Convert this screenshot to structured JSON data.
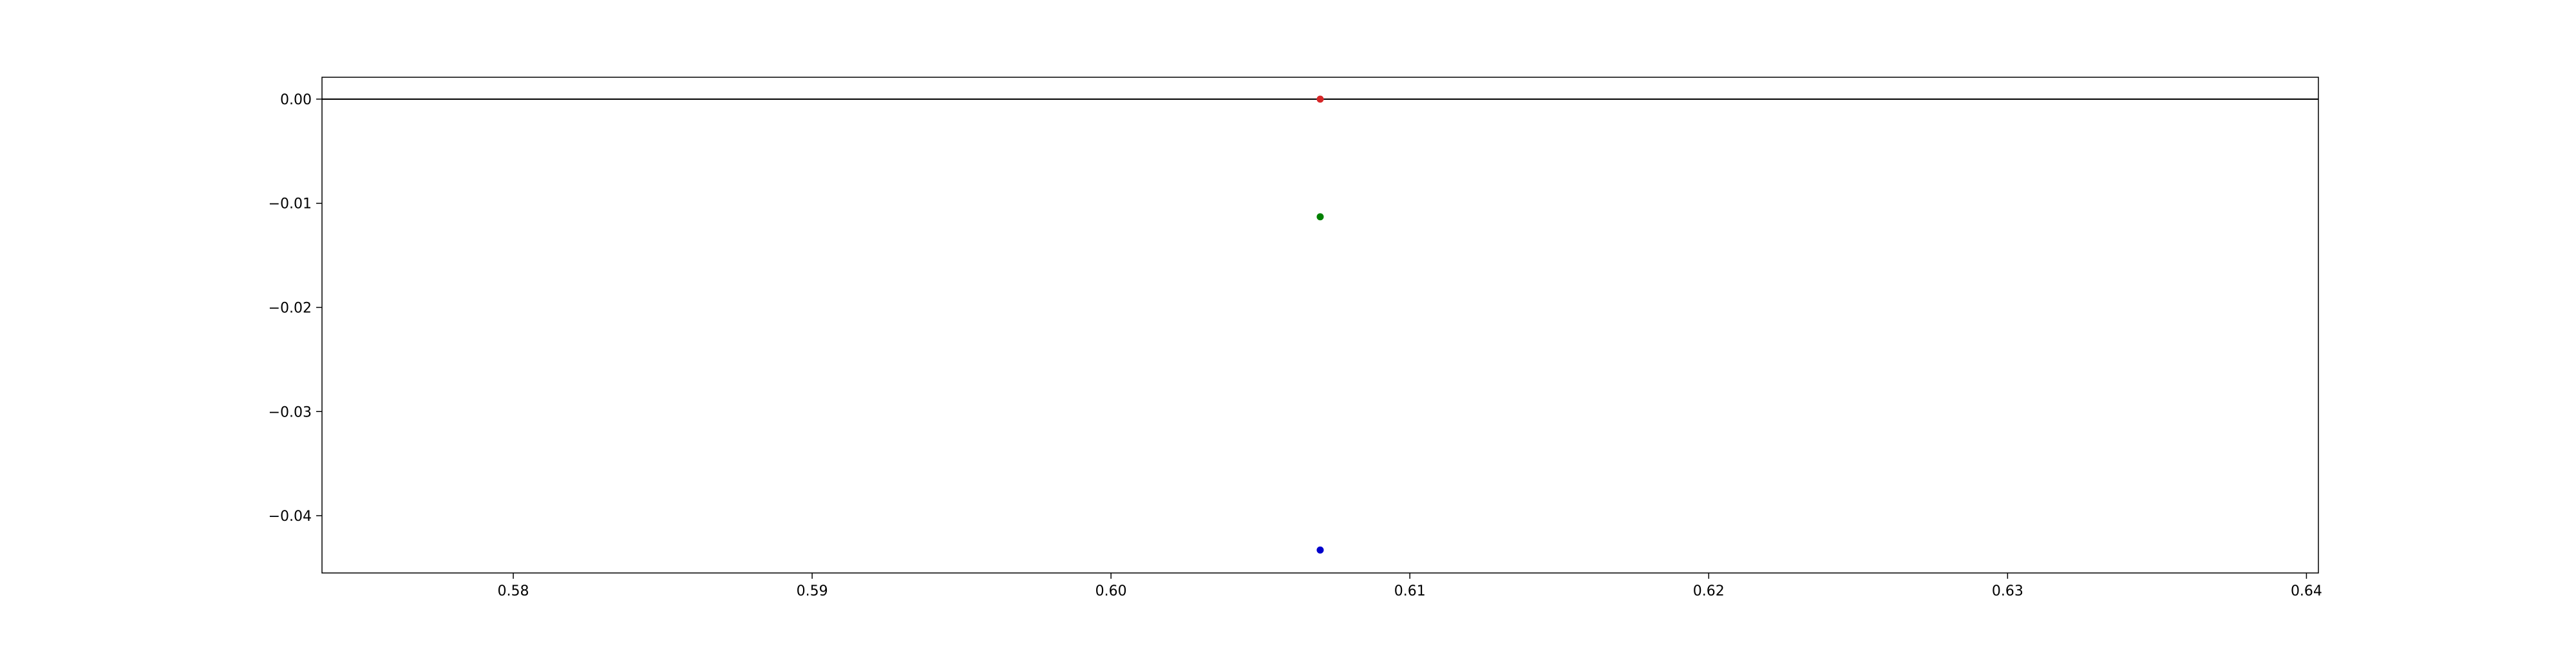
{
  "chart_data": {
    "type": "scatter",
    "title": "",
    "xlabel": "",
    "ylabel": "",
    "xlim": [
      0.5736,
      0.6404
    ],
    "ylim": [
      -0.0455,
      0.0021
    ],
    "grid": false,
    "x_ticks": [
      0.58,
      0.59,
      0.6,
      0.61,
      0.62,
      0.63,
      0.64
    ],
    "x_tick_labels": [
      "0.58",
      "0.59",
      "0.60",
      "0.61",
      "0.62",
      "0.63",
      "0.64"
    ],
    "y_ticks": [
      0.0,
      -0.01,
      -0.02,
      -0.03,
      -0.04
    ],
    "y_tick_labels": [
      "0.00",
      "−0.01",
      "−0.02",
      "−0.03",
      "−0.04"
    ],
    "hline": {
      "y": 0.0,
      "color": "#000000"
    },
    "series": [
      {
        "color": "#d62728",
        "points": [
          {
            "x": 0.607,
            "y": 0.0
          }
        ]
      },
      {
        "color": "#008000",
        "points": [
          {
            "x": 0.607,
            "y": -0.0113
          }
        ]
      },
      {
        "color": "#0000cc",
        "points": [
          {
            "x": 0.607,
            "y": -0.0433
          }
        ]
      }
    ]
  }
}
